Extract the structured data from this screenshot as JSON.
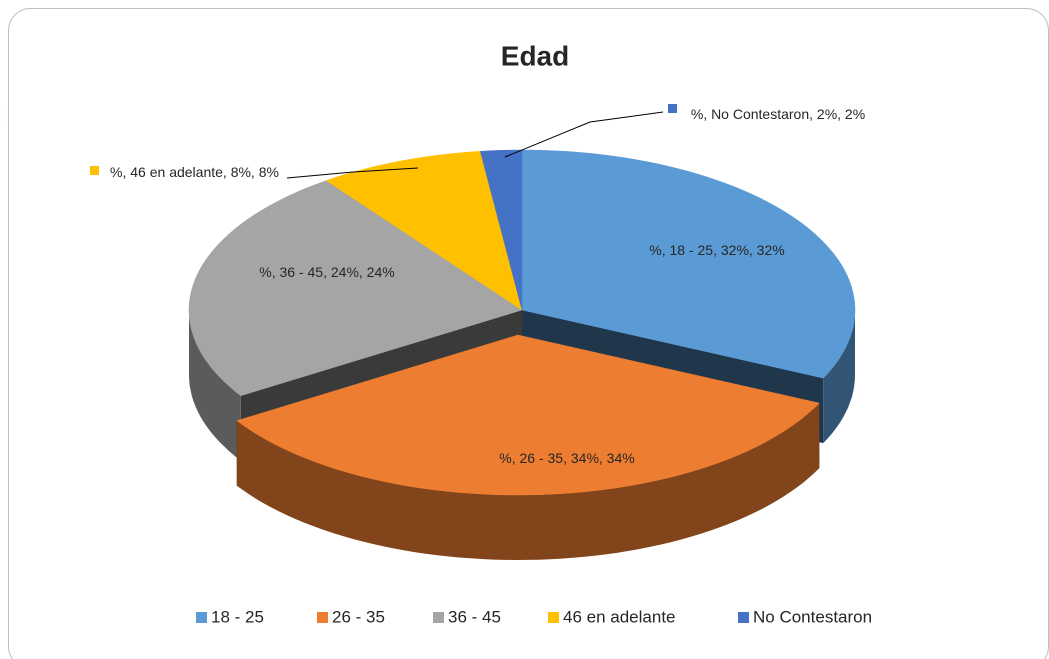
{
  "chart_data": {
    "type": "pie",
    "title": "Edad",
    "categories": [
      "18 - 25",
      "26 - 35",
      "36 - 45",
      "46 en adelante",
      "No Contestaron"
    ],
    "values": [
      32,
      34,
      24,
      8,
      2
    ],
    "value_labels": [
      "%, 18 - 25, 32%, 32%",
      "%, 26 - 35, 34%, 34%",
      "%, 36 - 45, 24%, 24%",
      "%, 46 en adelante, 8%, 8%",
      "%, No Contestaron, 2%, 2%"
    ],
    "colors": [
      "#5b9bd5",
      "#ed7d31",
      "#a5a5a5",
      "#ffc000",
      "#4472c4"
    ],
    "legend": "bottom"
  }
}
